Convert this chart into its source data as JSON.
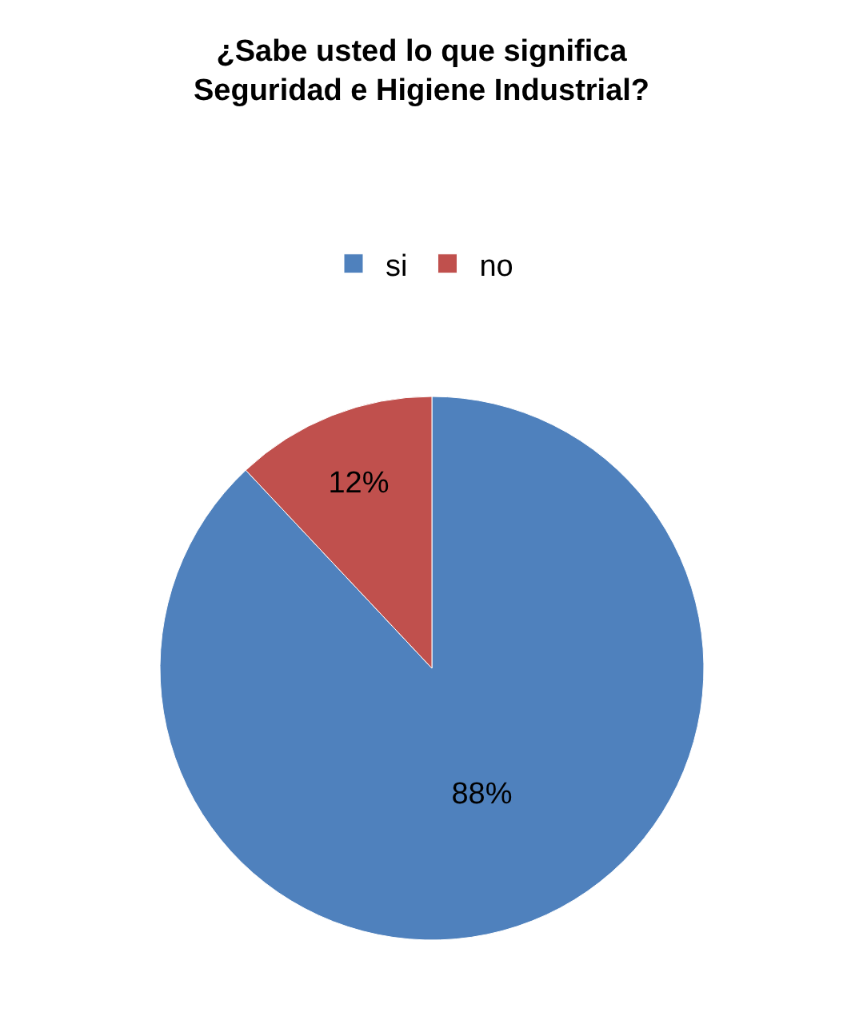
{
  "chart_data": {
    "type": "pie",
    "title": "¿Sabe usted lo que significa\nSeguridad e Higiene Industrial?",
    "categories": [
      "si",
      "no"
    ],
    "values": [
      88,
      12
    ],
    "colors": [
      "#4f81bd",
      "#c0504d"
    ],
    "value_labels": [
      "88%",
      "12%"
    ],
    "legend": "top"
  }
}
